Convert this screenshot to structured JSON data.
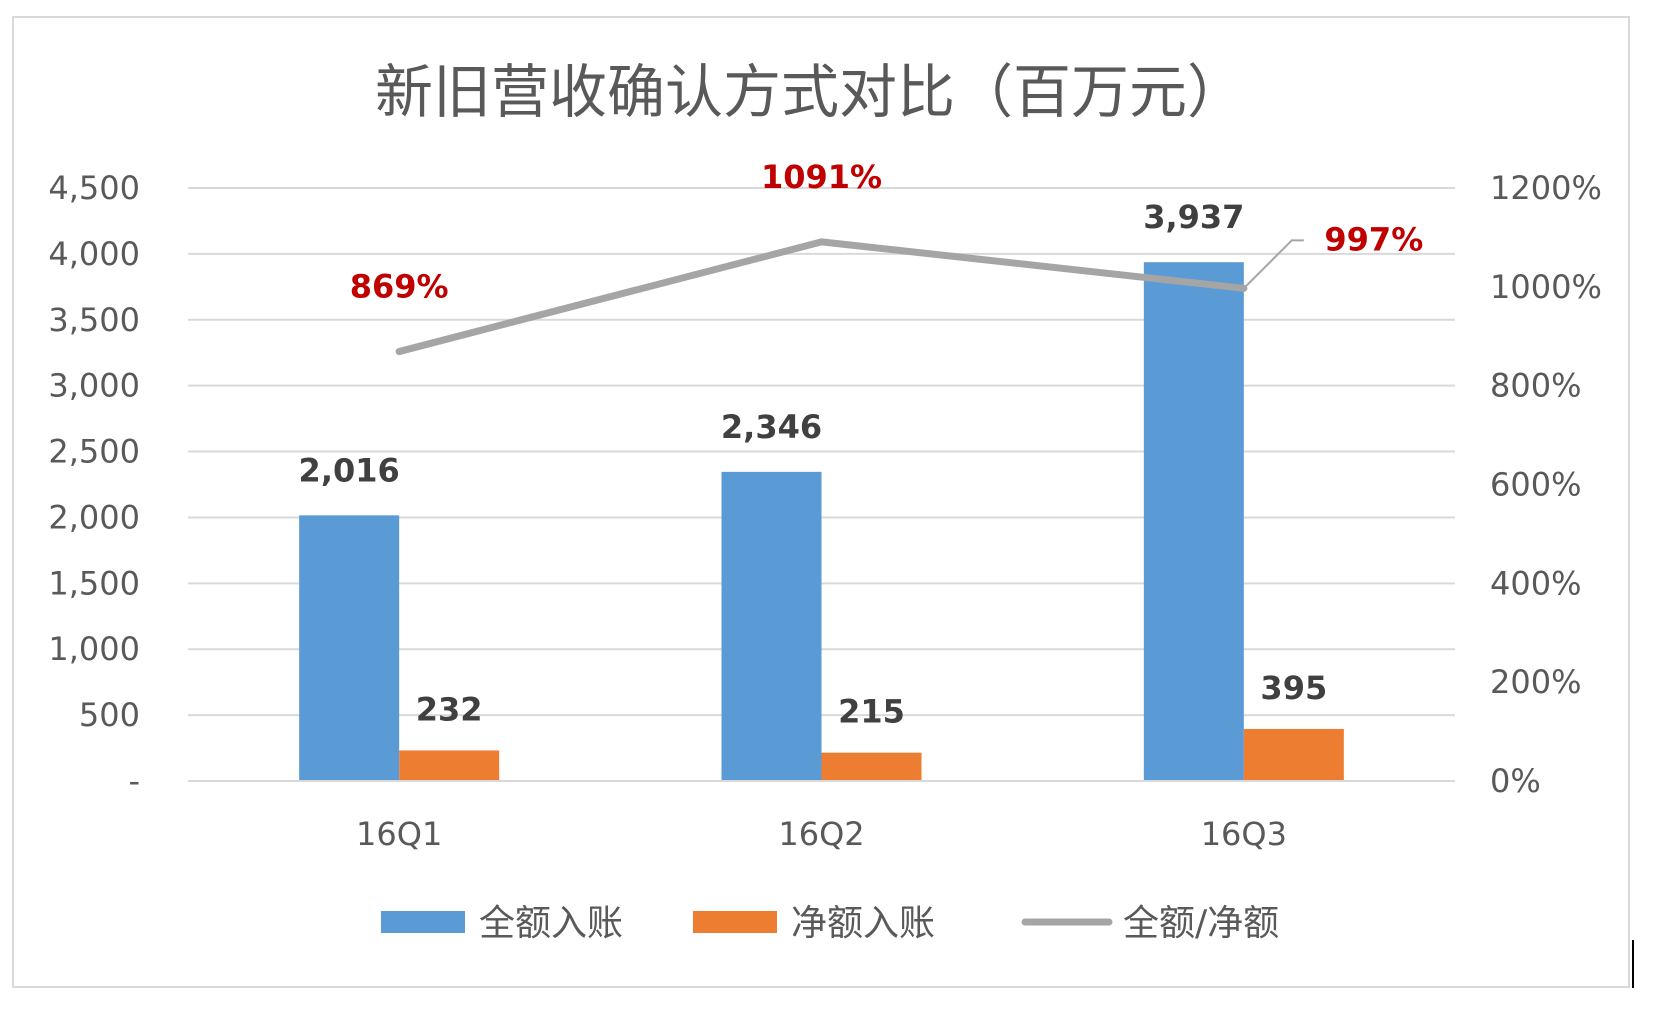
{
  "chart_data": {
    "type": "bar",
    "title": "新旧营收确认方式对比（百万元）",
    "categories": [
      "16Q1",
      "16Q2",
      "16Q3"
    ],
    "series": [
      {
        "name": "全额入账",
        "kind": "bar",
        "axis": "left",
        "color": "#5b9bd5",
        "values": [
          2016,
          2346,
          3937
        ],
        "labels": [
          "2,016",
          "2,346",
          "3,937"
        ]
      },
      {
        "name": "净额入账",
        "kind": "bar",
        "axis": "left",
        "color": "#ed7d31",
        "values": [
          232,
          215,
          395
        ],
        "labels": [
          "232",
          "215",
          "395"
        ]
      },
      {
        "name": "全额/净额",
        "kind": "line",
        "axis": "right",
        "color": "#a5a5a5",
        "values": [
          869,
          1091,
          997
        ],
        "labels": [
          "869%",
          "1091%",
          "997%"
        ],
        "label_color": "#c00000"
      }
    ],
    "ylim_left": [
      0,
      4500
    ],
    "yticks_left": [
      "-",
      "500",
      "1,000",
      "1,500",
      "2,000",
      "2,500",
      "3,000",
      "3,500",
      "4,000",
      "4,500"
    ],
    "ylim_right": [
      0,
      1200
    ],
    "yticks_right": [
      "0%",
      "200%",
      "400%",
      "600%",
      "800%",
      "1000%",
      "1200%"
    ],
    "grid": true,
    "legend_position": "bottom"
  }
}
